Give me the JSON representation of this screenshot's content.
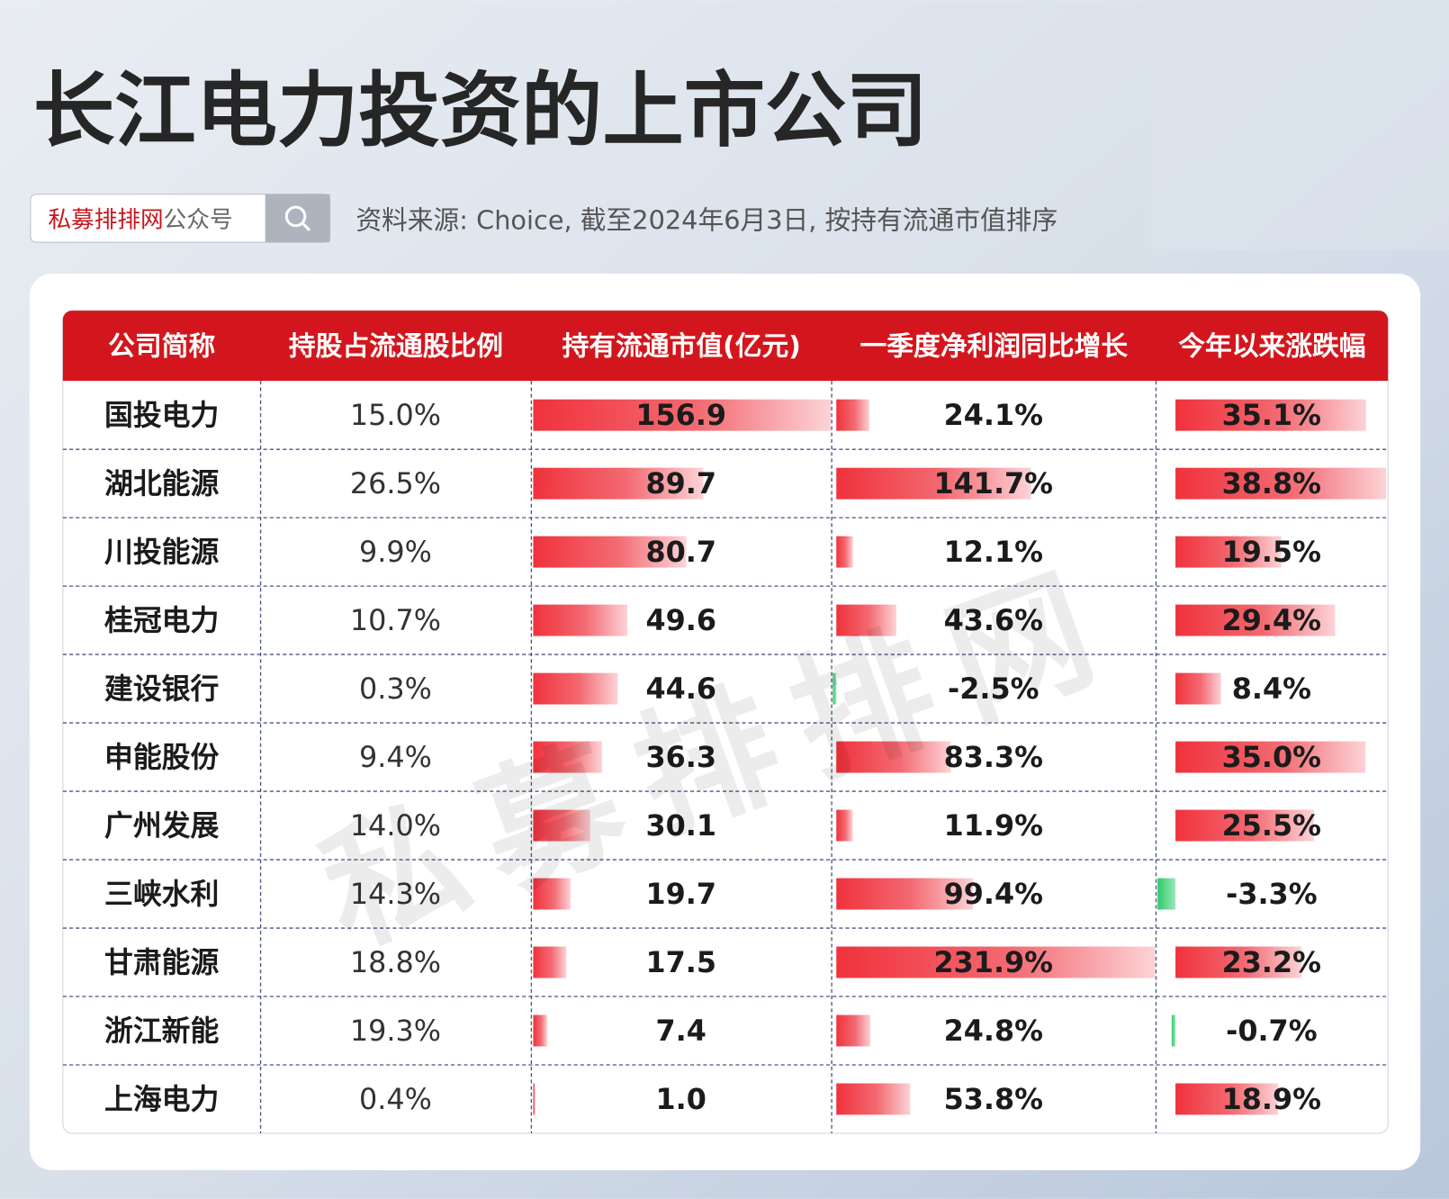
{
  "header": {
    "title": "长江电力投资的上市公司",
    "brand": "私募排排网",
    "brand_suffix": "公众号",
    "source": "资料来源: Choice, 截至2024年6月3日, 按持有流通市值排序"
  },
  "table": {
    "columns": [
      "公司简称",
      "持股占流通股比例",
      "持有流通市值(亿元)",
      "一季度净利润同比增长",
      "今年以来涨跌幅"
    ],
    "companies": [
      "国投电力",
      "湖北能源",
      "川投能源",
      "桂冠电力",
      "建设银行",
      "申能股份",
      "广州发展",
      "三峡水利",
      "甘肃能源",
      "浙江新能",
      "上海电力"
    ],
    "share_ratio": [
      "15.0%",
      "26.5%",
      "9.9%",
      "10.7%",
      "0.3%",
      "9.4%",
      "14.0%",
      "14.3%",
      "18.8%",
      "19.3%",
      "0.4%"
    ],
    "market_value": {
      "values": [
        156.9,
        89.7,
        80.7,
        49.6,
        44.6,
        36.3,
        30.1,
        19.7,
        17.5,
        7.4,
        1.0
      ],
      "value_labels": [
        "156.9",
        "89.7",
        "80.7",
        "49.6",
        "44.6",
        "36.3",
        "30.1",
        "19.7",
        "17.5",
        "7.4",
        "1.0"
      ]
    },
    "profit_growth": {
      "values": [
        24.1,
        141.7,
        12.1,
        43.6,
        -2.5,
        83.3,
        11.9,
        99.4,
        231.9,
        24.8,
        53.8
      ],
      "value_labels": [
        "24.1%",
        "141.7%",
        "12.1%",
        "43.6%",
        "-2.5%",
        "83.3%",
        "11.9%",
        "99.4%",
        "231.9%",
        "24.8%",
        "53.8%"
      ]
    },
    "ytd_change": {
      "values": [
        35.1,
        38.8,
        19.5,
        29.4,
        8.4,
        35.0,
        25.5,
        -3.3,
        23.2,
        -0.7,
        18.9
      ],
      "value_labels": [
        "35.1%",
        "38.8%",
        "19.5%",
        "29.4%",
        "8.4%",
        "35.0%",
        "25.5%",
        "-3.3%",
        "23.2%",
        "-0.7%",
        "18.9%"
      ]
    }
  }
}
